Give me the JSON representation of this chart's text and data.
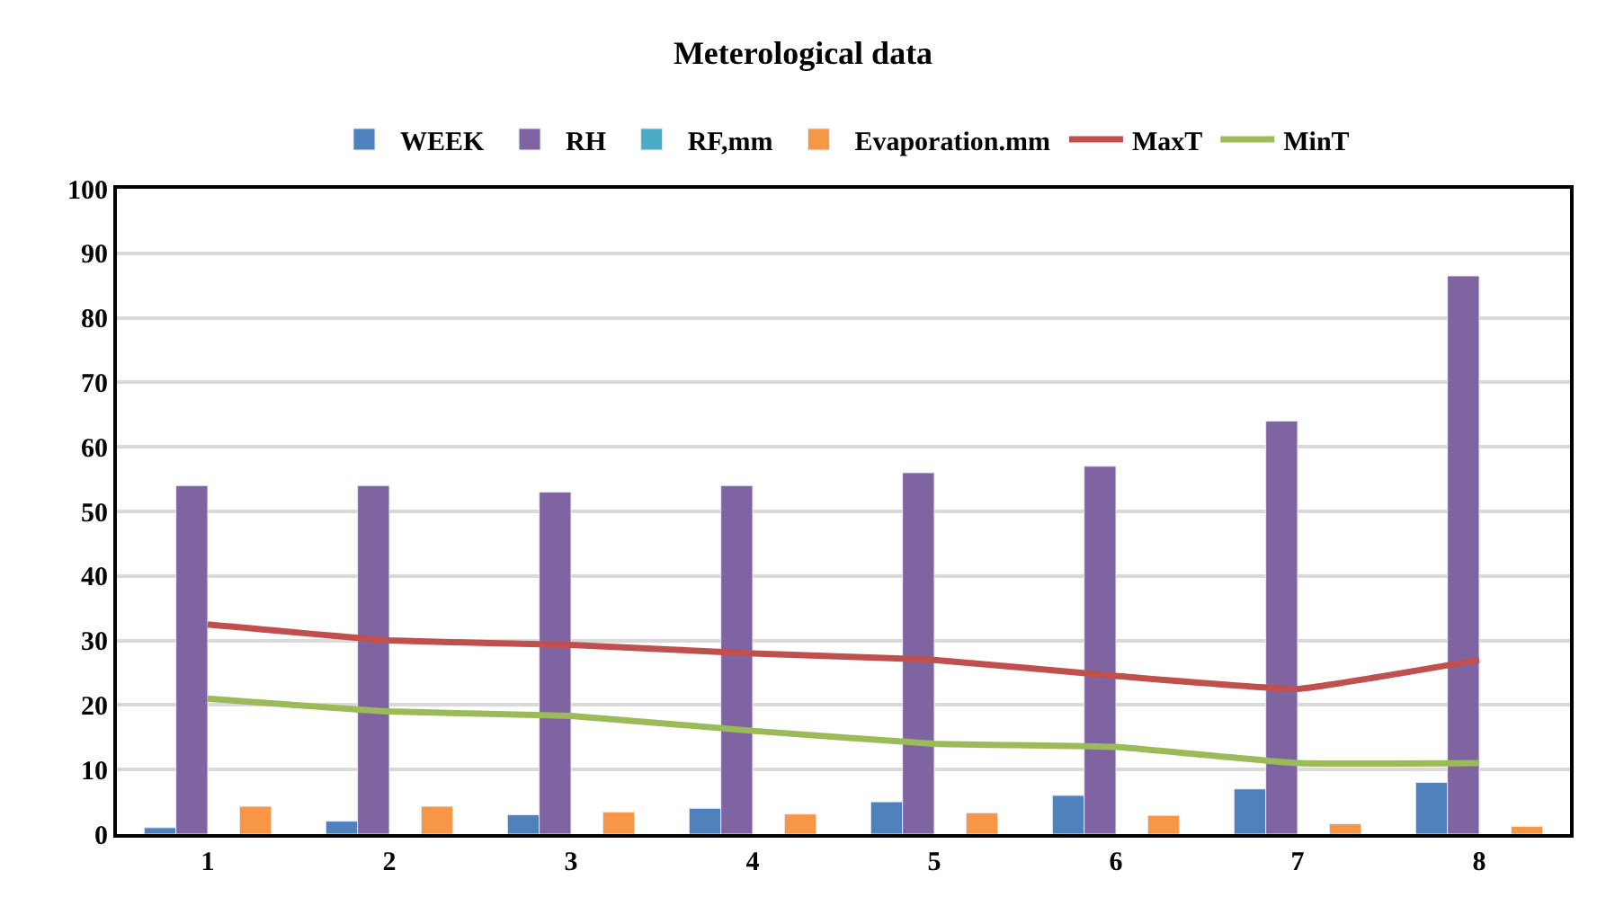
{
  "chart_data": {
    "type": "bar",
    "title": "Meterological data",
    "categories": [
      "1",
      "2",
      "3",
      "4",
      "5",
      "6",
      "7",
      "8"
    ],
    "series": [
      {
        "name": "WEEK",
        "color": "#4f81bd",
        "values": [
          1,
          2,
          3,
          4,
          5,
          6,
          7,
          8
        ]
      },
      {
        "name": "RH",
        "color": "#8064a2",
        "values": [
          54,
          54,
          53,
          54,
          56,
          57,
          64,
          86.5
        ]
      },
      {
        "name": "RF,mm",
        "color": "#4bacc6",
        "values": [
          null,
          null,
          null,
          null,
          null,
          null,
          null,
          null
        ]
      },
      {
        "name": "Evaporation.mm",
        "color": "#f79646",
        "values": [
          4.3,
          4.3,
          3.4,
          3.1,
          3.3,
          2.9,
          1.6,
          1.2
        ]
      },
      {
        "name": "MaxT",
        "color": "#c0504d",
        "type": "line",
        "values": [
          32.5,
          30,
          29.3,
          28,
          27,
          24.5,
          22.5,
          27
        ]
      },
      {
        "name": "MinT",
        "color": "#9bbb59",
        "type": "line",
        "values": [
          21,
          19,
          18.3,
          16,
          14,
          13.5,
          11,
          11
        ]
      }
    ],
    "ylim": [
      0,
      100
    ],
    "yticks": [
      0,
      10,
      20,
      30,
      40,
      50,
      60,
      70,
      80,
      90,
      100
    ],
    "grid": "y",
    "legend": "top",
    "marker": "none"
  }
}
